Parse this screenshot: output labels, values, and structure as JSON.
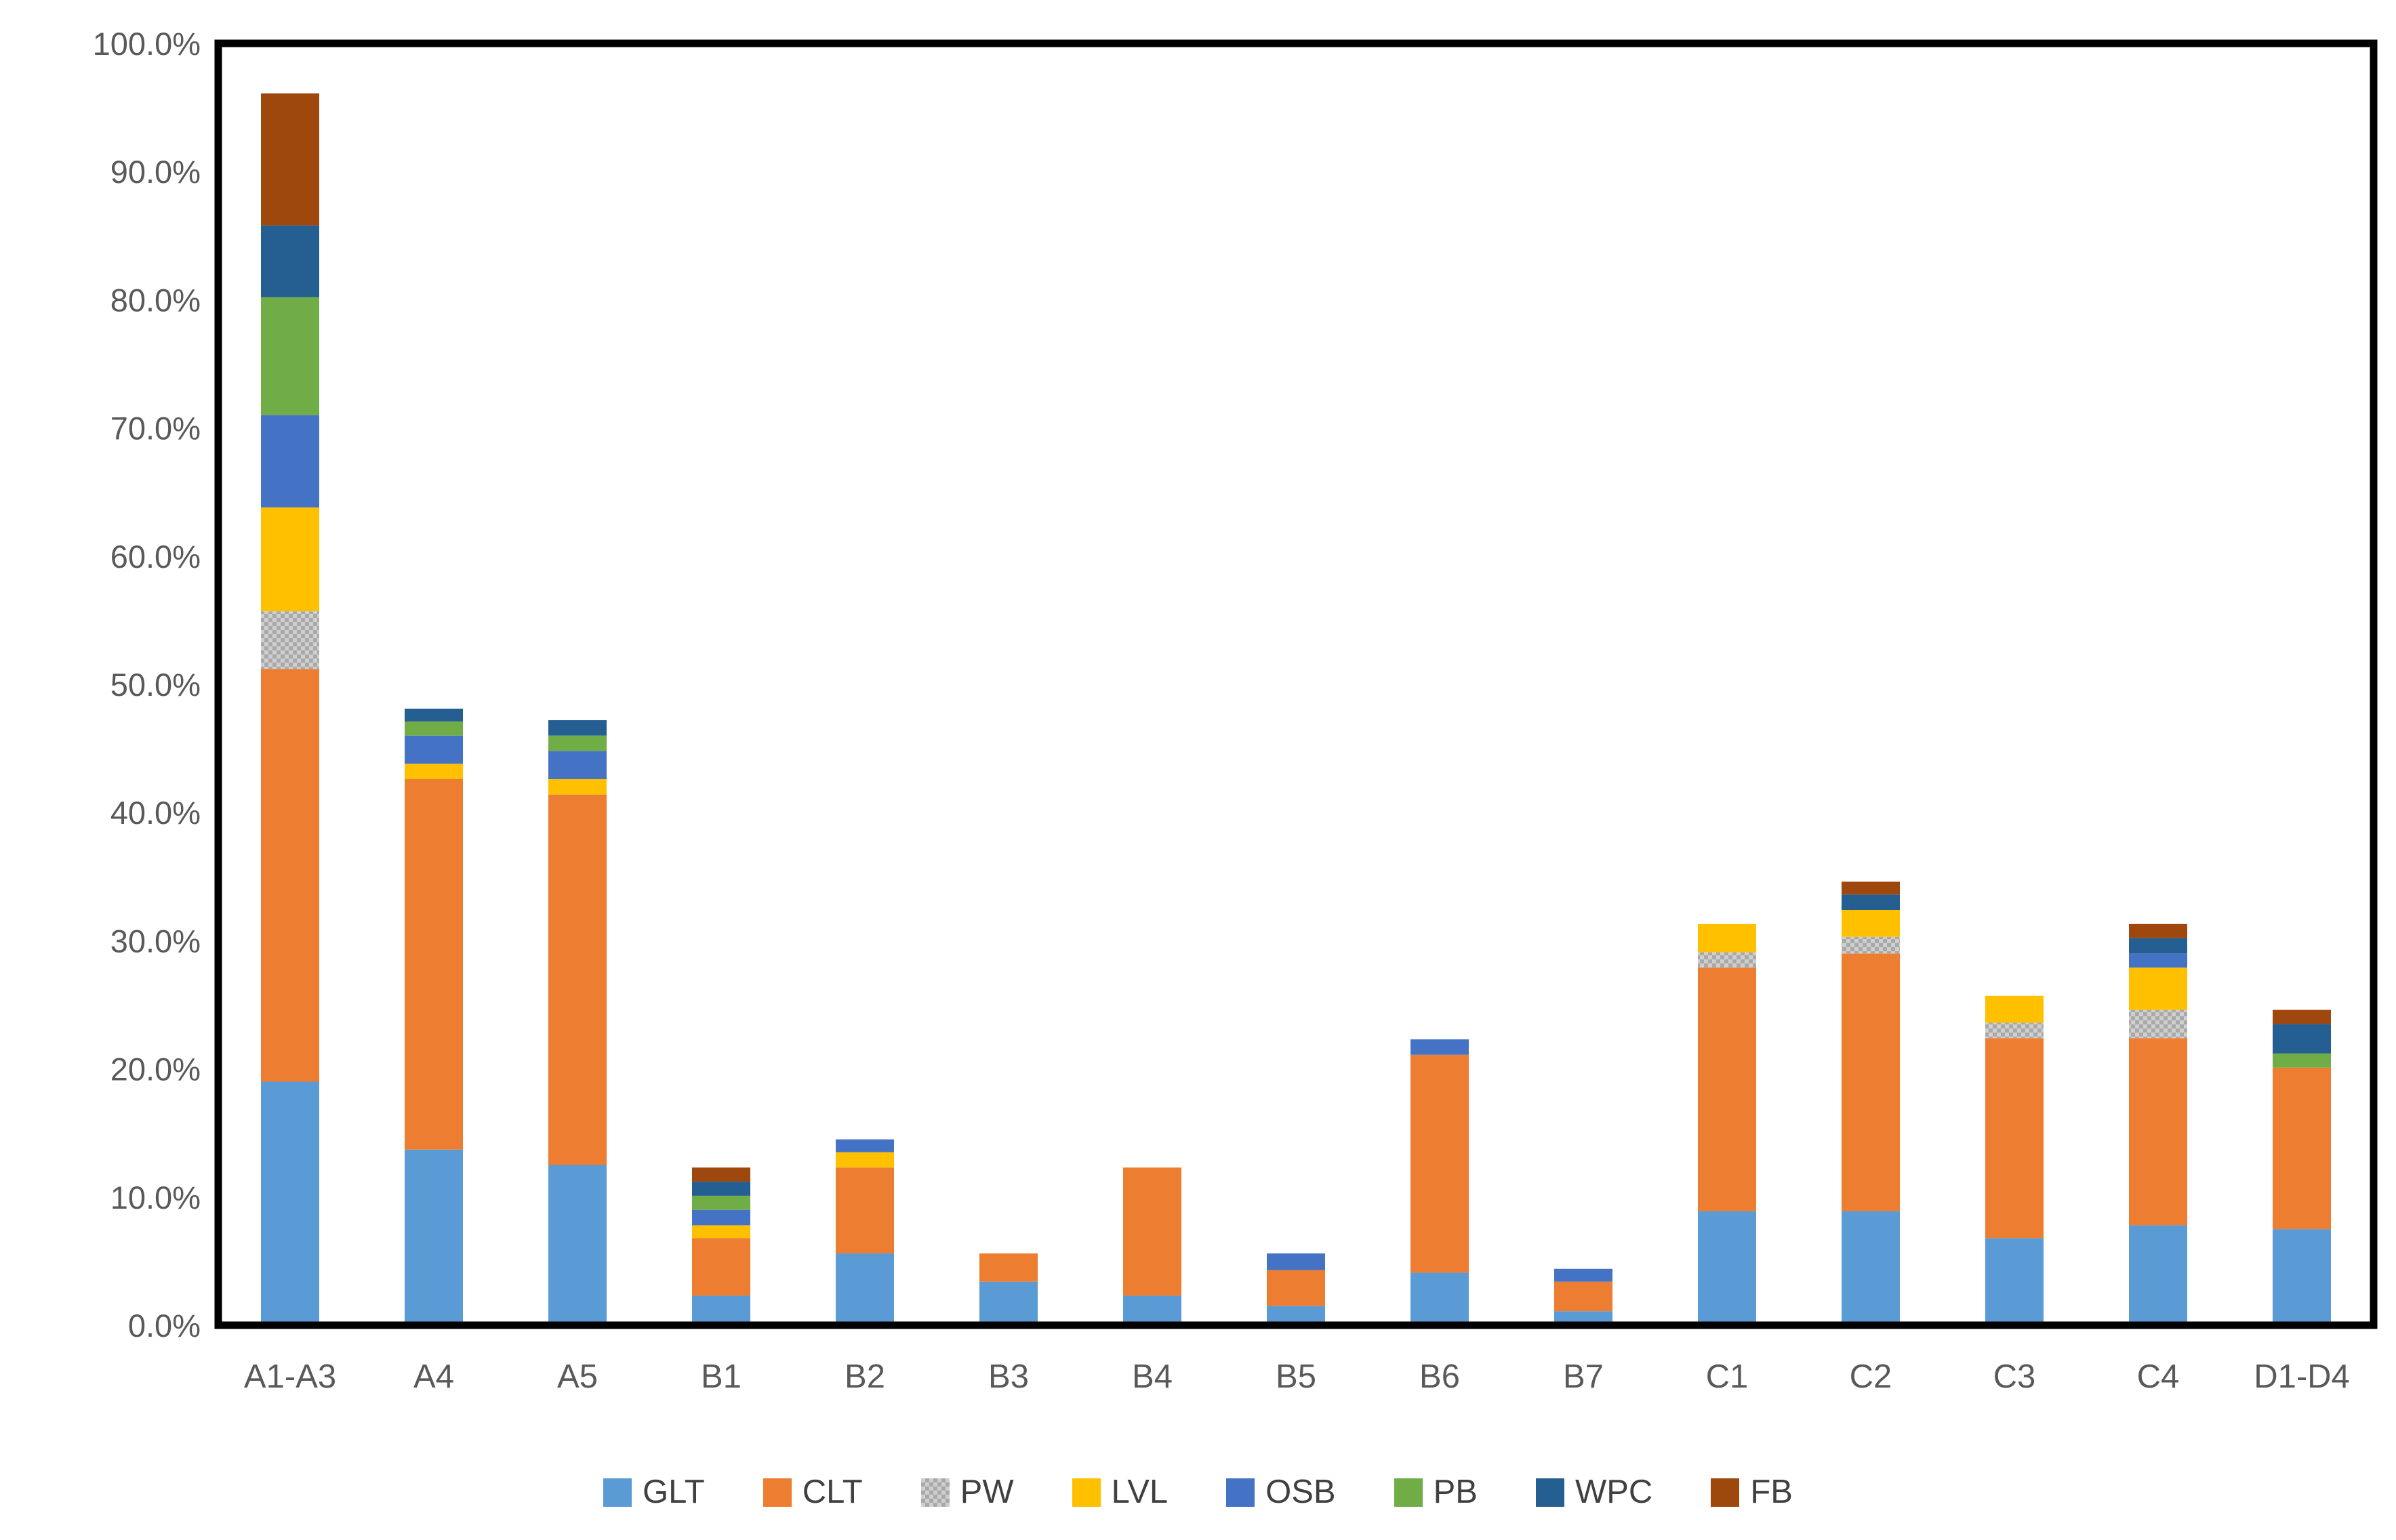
{
  "chart_data": {
    "type": "bar",
    "stacked": true,
    "title": "",
    "xlabel": "",
    "ylabel": "",
    "grid": false,
    "legend_position": "bottom",
    "ylim": [
      0,
      100
    ],
    "ytick_step": 10,
    "yticks": [
      "0.0%",
      "10.0%",
      "20.0%",
      "30.0%",
      "40.0%",
      "50.0%",
      "60.0%",
      "70.0%",
      "80.0%",
      "90.0%",
      "100.0%"
    ],
    "axis_frame_color": "#000000",
    "tick_label_color": "#595959",
    "categories": [
      "A1-A3",
      "A4",
      "A5",
      "B1",
      "B2",
      "B3",
      "B4",
      "B5",
      "B6",
      "B7",
      "C1",
      "C2",
      "C3",
      "C4",
      "D1-D4"
    ],
    "series": [
      {
        "name": "GLT",
        "color": "#5B9BD5",
        "pattern": false,
        "values": [
          19.0,
          13.7,
          12.5,
          2.3,
          5.6,
          3.4,
          2.3,
          1.5,
          4.1,
          1.1,
          8.9,
          8.9,
          6.8,
          7.8,
          7.5
        ]
      },
      {
        "name": "CLT",
        "color": "#ED7D31",
        "pattern": false,
        "values": [
          32.2,
          28.9,
          28.9,
          4.5,
          6.7,
          2.2,
          10.0,
          2.8,
          17.0,
          2.3,
          19.0,
          20.1,
          15.6,
          14.6,
          12.6
        ]
      },
      {
        "name": "PW",
        "color": "#A6A6A6",
        "pattern": true,
        "values": [
          4.5,
          0,
          0,
          0,
          0,
          0,
          0,
          0,
          0,
          0,
          1.2,
          1.3,
          1.2,
          2.2,
          0
        ]
      },
      {
        "name": "LVL",
        "color": "#FFC000",
        "pattern": false,
        "values": [
          8.1,
          1.2,
          1.2,
          1.0,
          1.2,
          0,
          0,
          0,
          0,
          0,
          2.2,
          2.1,
          2.1,
          3.3,
          0
        ]
      },
      {
        "name": "OSB",
        "color": "#4472C4",
        "pattern": false,
        "values": [
          7.2,
          2.2,
          2.2,
          1.2,
          1.0,
          0,
          0,
          1.3,
          1.2,
          1.0,
          0,
          0,
          0,
          1.1,
          0
        ]
      },
      {
        "name": "PB",
        "color": "#70AD47",
        "pattern": false,
        "values": [
          9.2,
          1.1,
          1.2,
          1.1,
          0,
          0,
          0,
          0,
          0,
          0,
          0,
          0,
          0,
          0,
          1.1
        ]
      },
      {
        "name": "WPC",
        "color": "#255E91",
        "pattern": false,
        "values": [
          5.6,
          1.0,
          1.2,
          1.1,
          0,
          0,
          0,
          0,
          0,
          0,
          0,
          1.2,
          0,
          1.2,
          2.3
        ]
      },
      {
        "name": "FB",
        "color": "#9E480E",
        "pattern": false,
        "values": [
          10.3,
          0,
          0,
          1.1,
          0,
          0,
          0,
          0,
          0,
          0,
          0,
          1.0,
          0,
          1.1,
          1.1
        ]
      }
    ]
  }
}
